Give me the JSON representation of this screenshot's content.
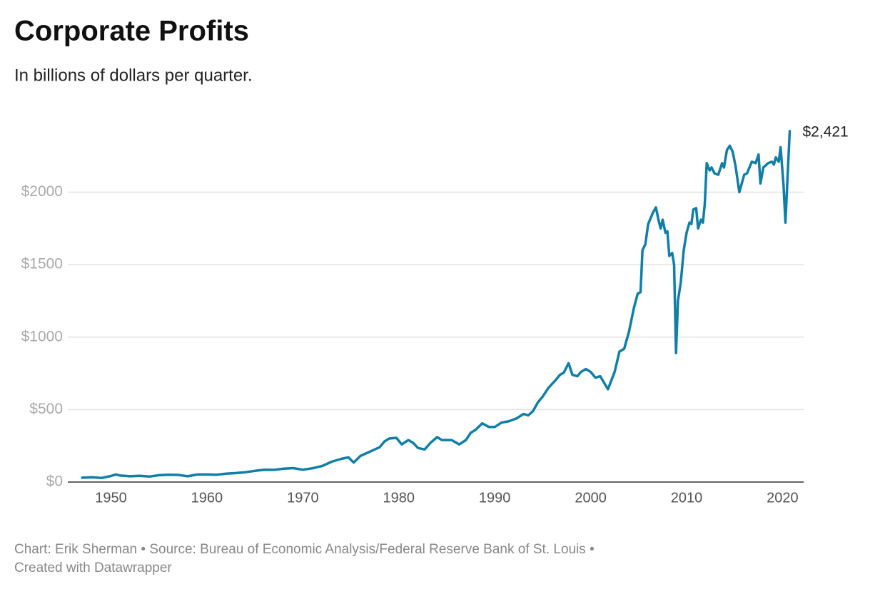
{
  "chart_data": {
    "type": "line",
    "title": "Corporate Profits",
    "subtitle": "In billions of dollars per quarter.",
    "credits": [
      "Chart: Erik Sherman • Source: Bureau of Economic Analysis/Federal Reserve Bank of St. Louis •",
      "Created with Datawrapper"
    ],
    "x": [
      1947,
      1948,
      1949,
      1950,
      1950.5,
      1951,
      1952,
      1953,
      1954,
      1955,
      1956,
      1957,
      1958,
      1959,
      1960,
      1961,
      1962,
      1963,
      1964,
      1965,
      1966,
      1967,
      1968,
      1969,
      1970,
      1971,
      1972,
      1973,
      1974,
      1974.75,
      1975.3,
      1976,
      1977,
      1978,
      1978.5,
      1979,
      1979.75,
      1980.3,
      1981,
      1981.5,
      1982,
      1982.7,
      1983.3,
      1984,
      1984.5,
      1985.5,
      1986.3,
      1987,
      1987.5,
      1988,
      1988.7,
      1989.4,
      1990,
      1990.7,
      1991.5,
      1992.3,
      1993,
      1993.5,
      1994,
      1994.5,
      1995,
      1995.6,
      1996.3,
      1996.8,
      1997.2,
      1997.7,
      1998.1,
      1998.6,
      1999,
      1999.5,
      2000,
      2000.5,
      2001,
      2001.8,
      2002.5,
      2003,
      2003.5,
      2004,
      2004.5,
      2004.9,
      2005.2,
      2005.4,
      2005.7,
      2006,
      2006.5,
      2006.8,
      2007.1,
      2007.3,
      2007.5,
      2007.8,
      2008,
      2008.2,
      2008.5,
      2008.7,
      2008.9,
      2009.1,
      2009.4,
      2009.7,
      2010,
      2010.3,
      2010.5,
      2010.7,
      2011,
      2011.2,
      2011.5,
      2011.7,
      2011.9,
      2012.1,
      2012.4,
      2012.6,
      2012.9,
      2013.3,
      2013.7,
      2013.9,
      2014.2,
      2014.5,
      2014.8,
      2015.1,
      2015.5,
      2016,
      2016.3,
      2016.8,
      2017.2,
      2017.5,
      2017.7,
      2018,
      2018.5,
      2018.9,
      2019.1,
      2019.3,
      2019.6,
      2019.8,
      2020.1,
      2020.3,
      2020.75
    ],
    "series": [
      {
        "name": "Corporate Profits",
        "color": "#0f7fa8",
        "values": [
          30,
          33,
          28,
          42,
          52,
          45,
          40,
          43,
          38,
          47,
          50,
          49,
          40,
          52,
          52,
          50,
          58,
          62,
          68,
          77,
          85,
          84,
          92,
          96,
          85,
          95,
          110,
          140,
          160,
          170,
          135,
          180,
          210,
          240,
          280,
          300,
          305,
          260,
          290,
          270,
          235,
          225,
          270,
          310,
          290,
          290,
          260,
          290,
          340,
          360,
          405,
          380,
          380,
          410,
          420,
          440,
          470,
          460,
          490,
          550,
          590,
          650,
          700,
          740,
          755,
          820,
          740,
          730,
          760,
          780,
          760,
          720,
          730,
          640,
          760,
          900,
          920,
          1040,
          1200,
          1300,
          1310,
          1600,
          1640,
          1780,
          1860,
          1895,
          1800,
          1750,
          1810,
          1720,
          1730,
          1560,
          1580,
          1500,
          890,
          1250,
          1380,
          1600,
          1720,
          1790,
          1780,
          1880,
          1890,
          1750,
          1810,
          1790,
          1920,
          2200,
          2150,
          2170,
          2130,
          2120,
          2200,
          2170,
          2290,
          2320,
          2280,
          2180,
          2000,
          2120,
          2130,
          2210,
          2200,
          2260,
          2060,
          2170,
          2200,
          2210,
          2190,
          2240,
          2210,
          2310,
          2050,
          1790,
          2421
        ],
        "value_labels": [
          null,
          null,
          null,
          null,
          null,
          null,
          null,
          null,
          null,
          null,
          null,
          null,
          null,
          null,
          null,
          null,
          null,
          null,
          null,
          null,
          null,
          null,
          null,
          null,
          null,
          null,
          null,
          null,
          null,
          null,
          null,
          null,
          null,
          null,
          null,
          null,
          null,
          null,
          null,
          null,
          null,
          null,
          null,
          null,
          null,
          null,
          null,
          null,
          null,
          null,
          null,
          null,
          null,
          null,
          null,
          null,
          null,
          null,
          null,
          null,
          null,
          null,
          null,
          null,
          null,
          null,
          null,
          null,
          null,
          null,
          null,
          null,
          null,
          null,
          null,
          null,
          null,
          null,
          null,
          null,
          null,
          null,
          null,
          null,
          null,
          null,
          null,
          null,
          null,
          null,
          null,
          null,
          null,
          null,
          null,
          null,
          null,
          null,
          null,
          null,
          null,
          null,
          null,
          null,
          null,
          null,
          null,
          null,
          null,
          null,
          null,
          null,
          null,
          null,
          null,
          null,
          null,
          null,
          null,
          null,
          null,
          null,
          null,
          null,
          null,
          null,
          null,
          null,
          null,
          null,
          null,
          null,
          null,
          null,
          "$2,421"
        ]
      }
    ],
    "xlim": [
      1945.5,
      2022.2
    ],
    "xticks": [
      1950,
      1960,
      1970,
      1980,
      1990,
      2000,
      2010,
      2020
    ],
    "ylim": [
      0,
      2450
    ],
    "yticks": [
      {
        "value": 0,
        "label": "$0"
      },
      {
        "value": 500,
        "label": "$500"
      },
      {
        "value": 1000,
        "label": "$1000"
      },
      {
        "value": 1500,
        "label": "$1500"
      },
      {
        "value": 2000,
        "label": "$2000"
      }
    ],
    "grid": true
  }
}
